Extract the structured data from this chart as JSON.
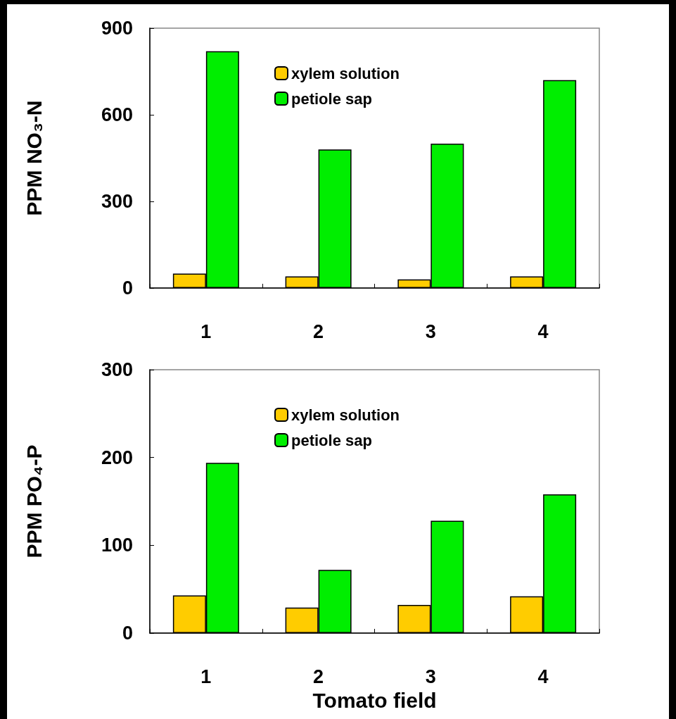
{
  "chart_data": [
    {
      "type": "bar",
      "ylabel": "PPM NO₃-N",
      "categories": [
        "1",
        "2",
        "3",
        "4"
      ],
      "series": [
        {
          "name": "xylem solution",
          "color": "#ffcc00",
          "values": [
            50,
            40,
            30,
            40
          ]
        },
        {
          "name": "petiole sap",
          "color": "#00ee00",
          "values": [
            820,
            480,
            500,
            720
          ]
        }
      ],
      "ylim": [
        0,
        900
      ],
      "yticks": [
        0,
        300,
        600,
        900
      ],
      "grid": false,
      "legend": "top"
    },
    {
      "type": "bar",
      "xlabel": "Tomato field",
      "ylabel": "PPM PO₄-P",
      "categories": [
        "1",
        "2",
        "3",
        "4"
      ],
      "series": [
        {
          "name": "xylem solution",
          "color": "#ffcc00",
          "values": [
            43,
            29,
            32,
            42
          ]
        },
        {
          "name": "petiole sap",
          "color": "#00ee00",
          "values": [
            194,
            72,
            128,
            158
          ]
        }
      ],
      "ylim": [
        0,
        300
      ],
      "yticks": [
        0,
        100,
        200,
        300
      ],
      "grid": false,
      "legend": "top"
    }
  ]
}
